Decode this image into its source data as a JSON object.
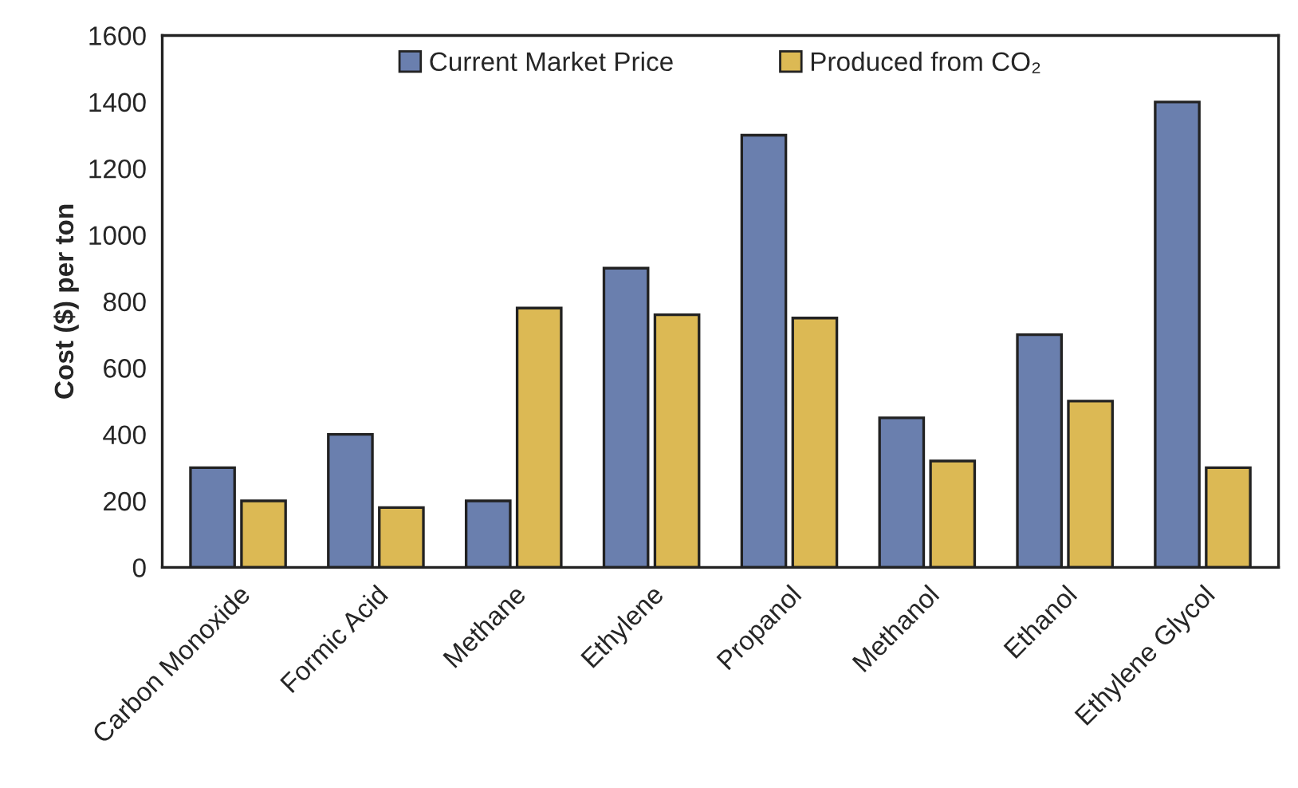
{
  "chart_data": {
    "type": "bar",
    "ylabel": "Cost ($) per ton",
    "categories": [
      "Carbon Monoxide",
      "Formic Acid",
      "Methane",
      "Ethylene",
      "Propanol",
      "Methanol",
      "Ethanol",
      "Ethylene Glycol"
    ],
    "series": [
      {
        "name": "Current Market Price",
        "color": "#6a7fae",
        "values": [
          300,
          400,
          200,
          900,
          1300,
          450,
          700,
          1400
        ]
      },
      {
        "name": "Produced from CO₂",
        "color": "#dcb954",
        "values": [
          200,
          180,
          780,
          760,
          750,
          320,
          500,
          300
        ]
      }
    ],
    "ylim": [
      0,
      1600
    ],
    "yticks": [
      0,
      200,
      400,
      600,
      800,
      1000,
      1200,
      1400,
      1600
    ],
    "grid": false,
    "legend": "top"
  }
}
